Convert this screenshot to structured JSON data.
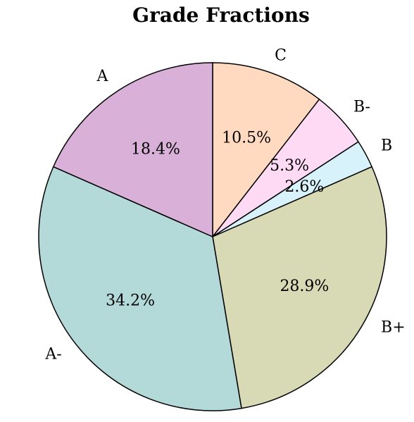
{
  "chart_data": {
    "type": "pie",
    "title": "Grade Fractions",
    "start_angle_deg": 90,
    "direction": "clockwise",
    "slices": [
      {
        "label": "C",
        "value": 10.5,
        "pct_label": "10.5%",
        "color": "#ffdac1"
      },
      {
        "label": "B-",
        "value": 5.3,
        "pct_label": "5.3%",
        "color": "#ffdaf5"
      },
      {
        "label": "B",
        "value": 2.6,
        "pct_label": "2.6%",
        "color": "#d7f2fa"
      },
      {
        "label": "B+",
        "value": 28.9,
        "pct_label": "28.9%",
        "color": "#d8d9b5"
      },
      {
        "label": "A-",
        "value": 34.2,
        "pct_label": "34.2%",
        "color": "#b3d9d9"
      },
      {
        "label": "A",
        "value": 18.4,
        "pct_label": "18.4%",
        "color": "#d8b0d8"
      }
    ]
  }
}
